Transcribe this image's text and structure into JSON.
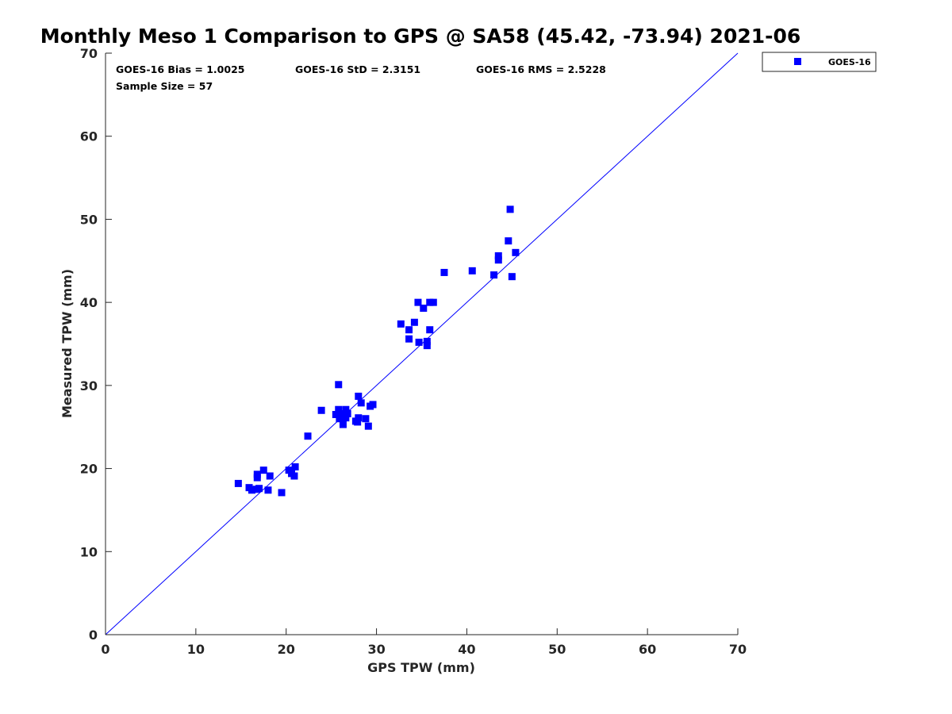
{
  "chart_data": {
    "type": "scatter",
    "title": "Monthly Meso 1 Comparison to GPS @ SA58 (45.42, -73.94) 2021-06",
    "xlabel": "GPS TPW (mm)",
    "ylabel": "Measured TPW (mm)",
    "xlim": [
      0,
      70
    ],
    "ylim": [
      0,
      70
    ],
    "xticks": [
      "0",
      "10",
      "20",
      "30",
      "40",
      "50",
      "60",
      "70"
    ],
    "yticks": [
      "0",
      "10",
      "20",
      "30",
      "40",
      "50",
      "60",
      "70"
    ],
    "grid": false,
    "legend_position": "top-right-outside",
    "reference_line": {
      "type": "1:1",
      "color": "#0000ff"
    },
    "stats": {
      "bias": "GOES-16 Bias = 1.0025",
      "std": "GOES-16 StD = 2.3151",
      "rms": "GOES-16 RMS = 2.5228",
      "sample": "Sample Size = 57"
    },
    "series": [
      {
        "name": "GOES-16",
        "color": "#0000ff",
        "marker": "square",
        "points": [
          [
            14.7,
            18.2
          ],
          [
            15.9,
            17.7
          ],
          [
            16.2,
            17.4
          ],
          [
            16.7,
            17.5
          ],
          [
            16.8,
            19.3
          ],
          [
            16.8,
            18.9
          ],
          [
            17.5,
            19.8
          ],
          [
            18.0,
            17.4
          ],
          [
            18.2,
            19.1
          ],
          [
            19.5,
            17.1
          ],
          [
            20.3,
            19.8
          ],
          [
            20.6,
            19.4
          ],
          [
            20.9,
            19.1
          ],
          [
            21.0,
            20.2
          ],
          [
            22.4,
            23.9
          ],
          [
            23.9,
            27.0
          ],
          [
            25.5,
            26.5
          ],
          [
            25.8,
            30.1
          ],
          [
            25.8,
            27.1
          ],
          [
            25.9,
            26.0
          ],
          [
            26.2,
            26.6
          ],
          [
            26.3,
            25.3
          ],
          [
            26.6,
            27.1
          ],
          [
            26.6,
            26.1
          ],
          [
            26.8,
            26.6
          ],
          [
            27.7,
            25.7
          ],
          [
            27.9,
            25.6
          ],
          [
            28.0,
            26.1
          ],
          [
            28.0,
            28.7
          ],
          [
            28.3,
            27.9
          ],
          [
            28.8,
            26.0
          ],
          [
            29.1,
            25.1
          ],
          [
            29.3,
            27.5
          ],
          [
            29.6,
            27.7
          ],
          [
            32.7,
            37.4
          ],
          [
            33.6,
            36.7
          ],
          [
            33.6,
            35.6
          ],
          [
            34.2,
            37.6
          ],
          [
            34.6,
            40.0
          ],
          [
            34.7,
            35.2
          ],
          [
            35.2,
            39.3
          ],
          [
            35.6,
            35.3
          ],
          [
            35.6,
            34.8
          ],
          [
            35.9,
            36.7
          ],
          [
            35.9,
            40.0
          ],
          [
            36.3,
            40.0
          ],
          [
            37.5,
            43.6
          ],
          [
            40.6,
            43.8
          ],
          [
            43.0,
            43.3
          ],
          [
            43.5,
            45.1
          ],
          [
            43.5,
            45.6
          ],
          [
            44.6,
            47.4
          ],
          [
            44.8,
            51.2
          ],
          [
            45.0,
            43.1
          ],
          [
            45.4,
            46.0
          ],
          [
            17.0,
            17.6
          ],
          [
            26.5,
            26.5
          ]
        ]
      }
    ]
  }
}
